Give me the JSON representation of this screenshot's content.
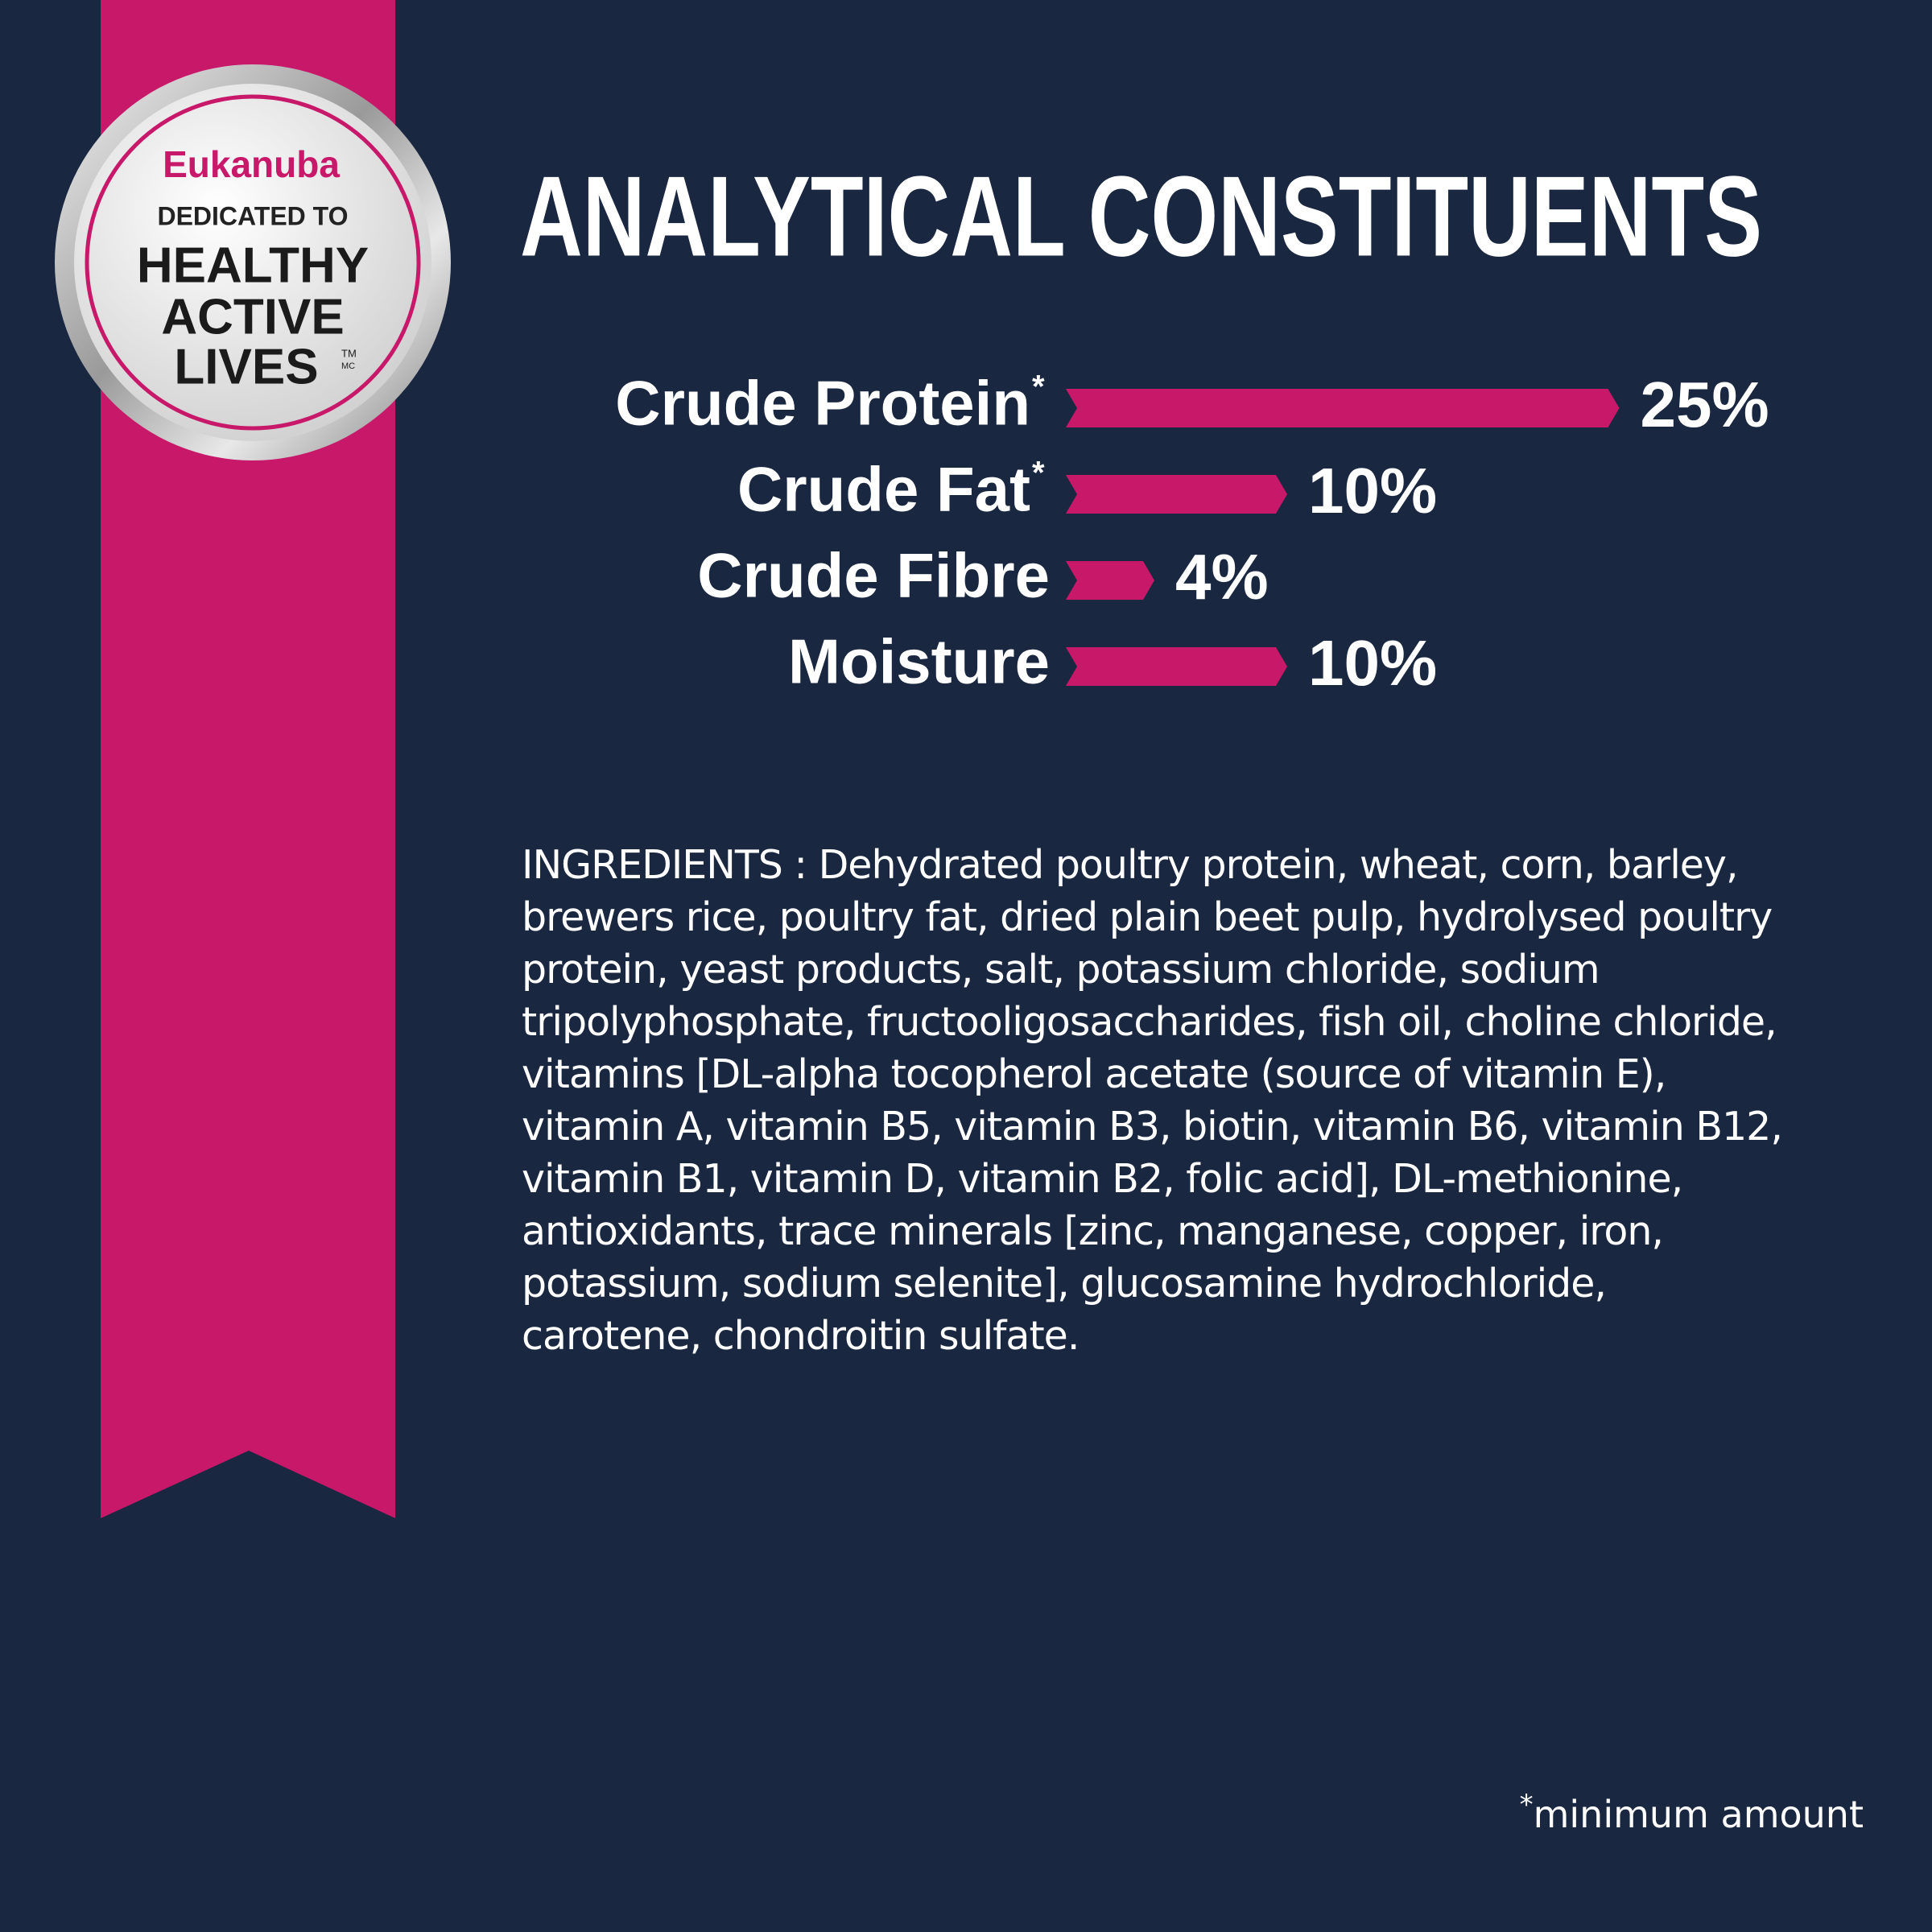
{
  "badge": {
    "brand": "Eukanuba",
    "line1": "DEDICATED TO",
    "line2": "HEALTHY",
    "line3": "ACTIVE",
    "line4": "LIVES",
    "tm": "TM",
    "mc": "MC"
  },
  "chart_data": {
    "type": "bar",
    "orientation": "horizontal",
    "title": "ANALYTICAL CONSTITUENTS",
    "categories": [
      "Crude Protein",
      "Crude Fat",
      "Crude Fibre",
      "Moisture"
    ],
    "category_marks": [
      "*",
      "*",
      null,
      null
    ],
    "values": [
      25,
      10,
      4,
      10
    ],
    "value_labels": [
      "25%",
      "10%",
      "4%",
      "10%"
    ],
    "color": "#c8186a"
  },
  "ingredients": "INGREDIENTS : Dehydrated poultry protein, wheat, corn, barley, brewers rice, poultry fat, dried plain beet pulp, hydrolysed poultry protein, yeast products, salt, potassium chloride, sodium tripolyphosphate, fructooligosaccharides, fish oil, choline chloride, vitamins [DL-alpha tocopherol acetate (source of vitamin E), vitamin A, vitamin B5, vitamin B3, biotin, vitamin B6, vitamin B12, vitamin B1, vitamin D, vitamin B2, folic acid], DL-methionine, antioxidants, trace minerals [zinc, manganese, copper, iron, potassium, sodium selenite], glucosamine hydrochloride, carotene, chondroitin sulfate.",
  "footnote": {
    "mark": "*",
    "text": "minimum amount"
  }
}
